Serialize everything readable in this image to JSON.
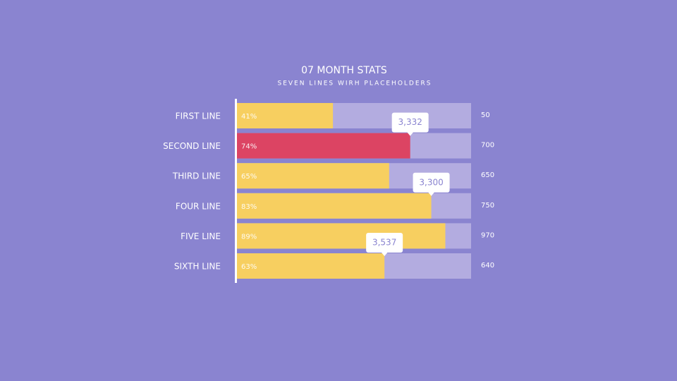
{
  "chart_data": {
    "type": "bar",
    "title": "07 MONTH STATS",
    "subtitle": "SEVEN LINES WIRH PLACEHOLDERS",
    "categories": [
      "FIRST LINE",
      "SECOND LINE",
      "THIRD LINE",
      "FOUR LINE",
      "FIVE LINE",
      "SIXTH LINE"
    ],
    "values": [
      41,
      74,
      65,
      83,
      89,
      63
    ],
    "value_labels": [
      "41%",
      "74%",
      "65%",
      "83%",
      "89%",
      "63%"
    ],
    "colors": [
      "#f7cf60",
      "#dc4463",
      "#f7cf60",
      "#f7cf60",
      "#f7cf60",
      "#f7cf60"
    ],
    "track_color": "#b3ace0",
    "xlim": [
      0,
      100
    ],
    "side_values": [
      50,
      700,
      650,
      750,
      970,
      640
    ],
    "callouts": [
      null,
      {
        "value": 3332,
        "label": "3,332"
      },
      null,
      {
        "value": 3300,
        "label": "3,300"
      },
      null,
      {
        "value": 3537,
        "label": "3,537"
      }
    ]
  }
}
